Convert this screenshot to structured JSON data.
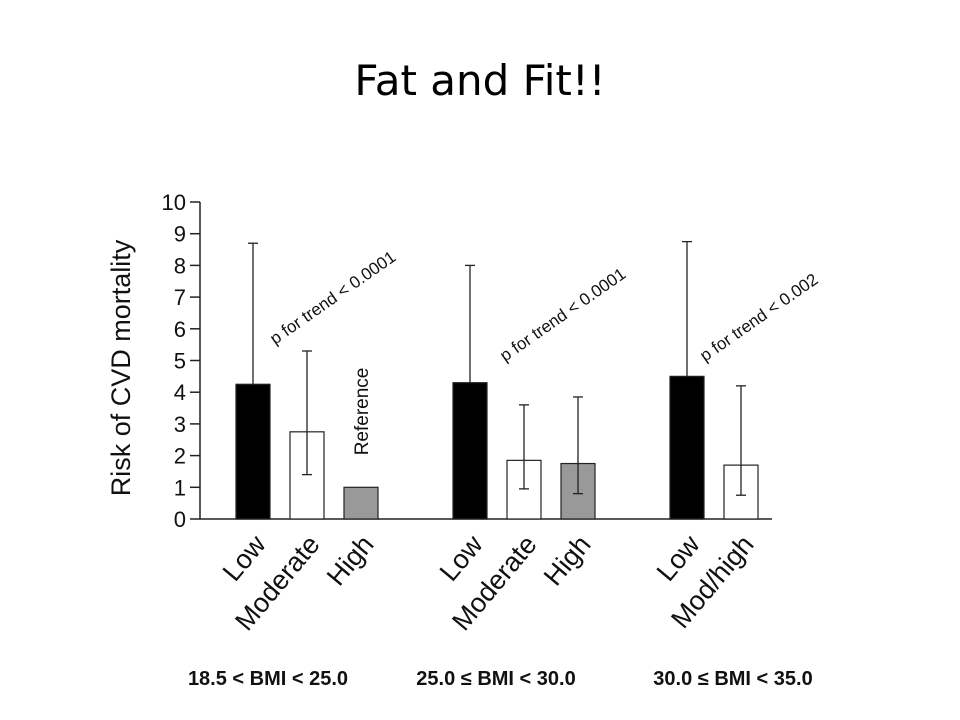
{
  "slide": {
    "title": "Fat and Fit!!"
  },
  "chart_data": {
    "type": "bar",
    "ylabel": "Risk of CVD mortality",
    "ylim": [
      0,
      10
    ],
    "yticks": [
      0,
      1,
      2,
      3,
      4,
      5,
      6,
      7,
      8,
      9,
      10
    ],
    "series_colors": {
      "Low": "#000000",
      "Moderate": "#ffffff",
      "High": "#999999",
      "Mod/high": "#ffffff"
    },
    "groups": [
      {
        "label": "18.5 < BMI < 25.0",
        "trend_label": "p for trend < 0.0001",
        "bars": [
          {
            "category": "Low",
            "value": 4.25,
            "ci_low": 4.25,
            "ci_high": 8.7
          },
          {
            "category": "Moderate",
            "value": 2.75,
            "ci_low": 1.4,
            "ci_high": 5.3
          },
          {
            "category": "High",
            "value": 1.0,
            "ci_low": null,
            "ci_high": null,
            "annotation": "Reference"
          }
        ]
      },
      {
        "label": "25.0 ≤ BMI < 30.0",
        "trend_label": "p for trend < 0.0001",
        "bars": [
          {
            "category": "Low",
            "value": 4.3,
            "ci_low": 4.3,
            "ci_high": 8.0
          },
          {
            "category": "Moderate",
            "value": 1.85,
            "ci_low": 0.95,
            "ci_high": 3.6
          },
          {
            "category": "High",
            "value": 1.75,
            "ci_low": 0.8,
            "ci_high": 3.85
          }
        ]
      },
      {
        "label": "30.0 ≤ BMI < 35.0",
        "trend_label": "p for trend < 0.002",
        "bars": [
          {
            "category": "Low",
            "value": 4.5,
            "ci_low": 4.5,
            "ci_high": 8.75
          },
          {
            "category": "Mod/high",
            "value": 1.7,
            "ci_low": 0.75,
            "ci_high": 4.2
          }
        ]
      }
    ]
  }
}
